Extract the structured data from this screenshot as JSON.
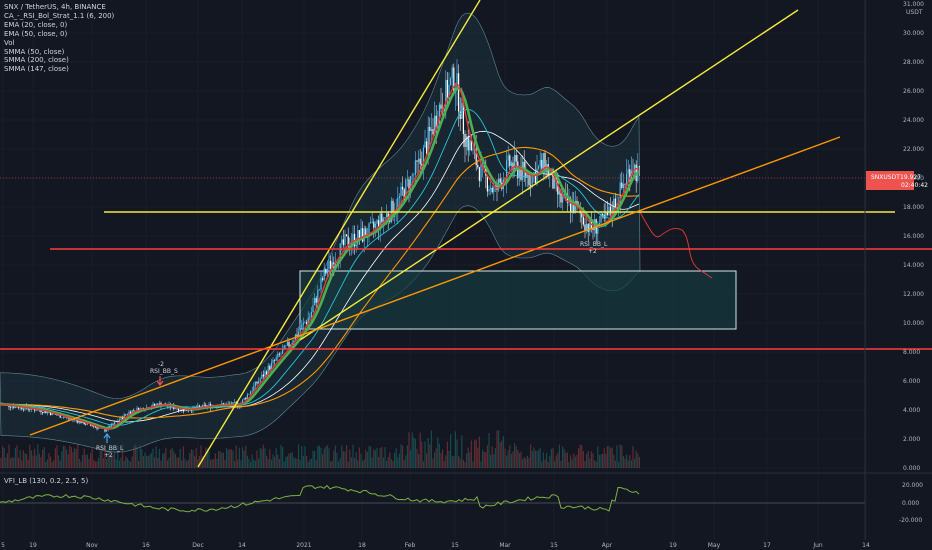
{
  "legend": {
    "title": "SNX / TetherUS, 4h, BINANCE",
    "studies": [
      "CA_-_RSI_Bol_Strat_1.1 (6, 200)",
      "EMA (20, close, 0)",
      "EMA (50, close, 0)",
      "Vol",
      "SMMA (50, close)",
      "SMMA (200, close)",
      "SMMA (147, close)"
    ]
  },
  "vfi_label": "VFI_LB (130, 0.2, 2.5, 5)",
  "axis": {
    "unit": "USDT",
    "top_label": "31.000",
    "price_ticks": [
      "30.000",
      "28.000",
      "26.000",
      "24.000",
      "22.000",
      "20.000",
      "18.000",
      "16.000",
      "14.000",
      "12.000",
      "10.000",
      "8.000",
      "6.000",
      "4.000",
      "2.000",
      "0.000"
    ],
    "vfi_ticks": [
      "20.000",
      "0.000",
      "-20.000"
    ],
    "time_labels": [
      "5",
      "19",
      "Nov",
      "16",
      "Dec",
      "14",
      "2021",
      "18",
      "Feb",
      "15",
      "Mar",
      "15",
      "Apr",
      "19",
      "May",
      "17",
      "Jun",
      "14"
    ]
  },
  "current_price": {
    "symbol": "SNXUSDT",
    "value": "19.927",
    "countdown": "02:40:42"
  },
  "markers": {
    "sell_count": "-2",
    "sell_label": "RSI_BB_S",
    "buy1_label": "RSI_BB_L",
    "buy1_count": "+2",
    "buy2_label": "RSI_BB_L",
    "buy2_count": "+2"
  },
  "colors": {
    "background": "#131722",
    "candle_up": "#26a69a",
    "candle_down": "#ef5350",
    "trendline_yellow": "#f5eb3c",
    "trendline_orange": "#ff9800",
    "support_red": "#ff3d3d",
    "ema_fast": "#e53935",
    "ema_slow": "#4caf50",
    "smma": "#ffffff",
    "vfi_line": "#7cb342"
  }
}
